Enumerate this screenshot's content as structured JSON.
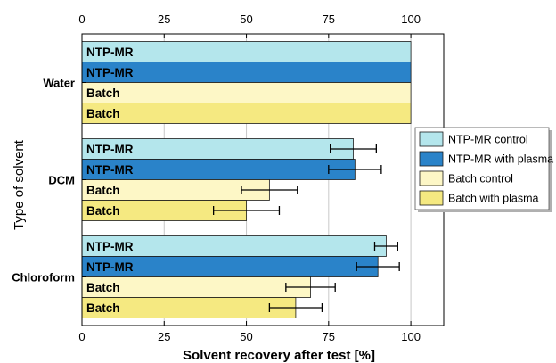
{
  "chart_data": {
    "type": "bar",
    "orientation": "horizontal",
    "categories": [
      "Water",
      "DCM",
      "Chloroform"
    ],
    "series": [
      {
        "name": "NTP-MR control",
        "bar_label": "NTP-MR",
        "color": "#b4e6ec",
        "values": [
          100,
          82.5,
          92.5
        ],
        "errors": [
          null,
          7,
          3.5
        ]
      },
      {
        "name": "NTP-MR with plasma",
        "bar_label": "NTP-MR",
        "color": "#2a83c9",
        "values": [
          100,
          83,
          90
        ],
        "errors": [
          null,
          8,
          6.5
        ]
      },
      {
        "name": "Batch control",
        "bar_label": "Batch",
        "color": "#fdf7c6",
        "values": [
          100,
          57,
          69.5
        ],
        "errors": [
          null,
          8.5,
          7.5
        ]
      },
      {
        "name": "Batch with plasma",
        "bar_label": "Batch",
        "color": "#f5e981",
        "values": [
          100,
          50,
          65
        ],
        "errors": [
          null,
          10,
          8
        ]
      }
    ],
    "xlabel": "Solvent recovery after test [%]",
    "ylabel": "Type of solvent",
    "xlim": [
      0,
      110
    ],
    "xticks": [
      0,
      25,
      50,
      75,
      100
    ],
    "xtick_labels": [
      "0",
      "25",
      "50",
      "75",
      "100"
    ],
    "grid": "vertical",
    "legend_position": "right"
  }
}
